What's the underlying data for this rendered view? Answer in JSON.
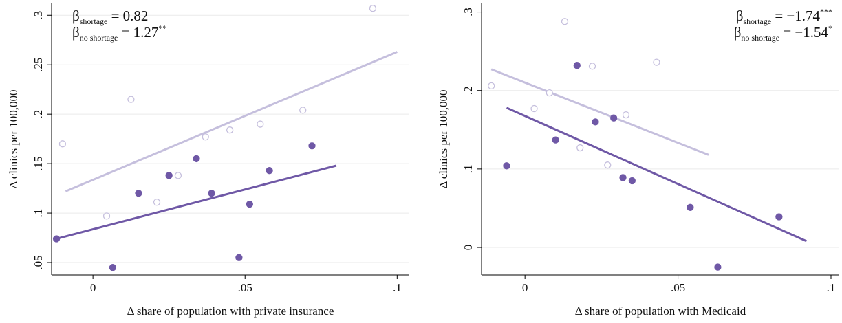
{
  "chart_data": [
    {
      "type": "scatter",
      "xlabel": "Δ share of population with private insurance",
      "ylabel": "Δ clinics per 100,000",
      "annotations": [
        {
          "symbol": "β",
          "sub": "shortage",
          "text": " = 0.82"
        },
        {
          "symbol": "β",
          "sub": "no shortage",
          "text": " = 1.27",
          "sup": "**"
        }
      ],
      "annotation_corner": "top-left",
      "xlim": [
        -0.0136,
        0.104
      ],
      "ylim": [
        0.0375,
        0.312
      ],
      "xticks": [
        0,
        {
          "value": 0.05,
          "label": ".05"
        },
        {
          "value": 0.1,
          "label": ".1"
        }
      ],
      "yticks": [
        {
          "value": 0.05,
          "label": ".05"
        },
        {
          "value": 0.1,
          "label": ".1"
        },
        {
          "value": 0.15,
          "label": ".15"
        },
        {
          "value": 0.2,
          "label": ".2"
        },
        {
          "value": 0.25,
          "label": ".25"
        },
        {
          "value": 0.3,
          "label": ".3"
        }
      ],
      "grid": true,
      "series": [
        {
          "color": "#6f58a6",
          "filled": true,
          "x": [
            -0.012,
            0.0065,
            0.015,
            0.025,
            0.034,
            0.039,
            0.048,
            0.0515,
            0.058,
            0.072
          ],
          "values": [
            0.074,
            0.045,
            0.12,
            0.138,
            0.155,
            0.12,
            0.055,
            0.109,
            0.143,
            0.168
          ],
          "fit": {
            "x": [
              -0.012,
              0.08
            ],
            "values": [
              0.074,
              0.148
            ]
          }
        },
        {
          "color": "#c5bfdd",
          "filled": false,
          "x": [
            -0.01,
            0.0045,
            0.0125,
            0.021,
            0.028,
            0.037,
            0.045,
            0.055,
            0.069,
            0.092
          ],
          "values": [
            0.17,
            0.097,
            0.215,
            0.111,
            0.138,
            0.177,
            0.184,
            0.19,
            0.204,
            0.307
          ],
          "fit": {
            "x": [
              -0.009,
              0.1
            ],
            "values": [
              0.122,
              0.263
            ]
          }
        }
      ]
    },
    {
      "type": "scatter",
      "xlabel": "Δ share of population with Medicaid",
      "ylabel": "Δ clinics per 100,000",
      "annotations": [
        {
          "symbol": "β",
          "sub": "shortage",
          "text": " = −1.74",
          "sup": "***"
        },
        {
          "symbol": "β",
          "sub": "no shortage",
          "text": " = −1.54",
          "sup": "*"
        }
      ],
      "annotation_corner": "top-right",
      "xlim": [
        -0.0142,
        0.1027
      ],
      "ylim": [
        -0.035,
        0.311
      ],
      "xticks": [
        0,
        {
          "value": 0.05,
          "label": ".05"
        },
        {
          "value": 0.1,
          "label": ".1"
        }
      ],
      "yticks": [
        0,
        {
          "value": 0.1,
          "label": ".1"
        },
        {
          "value": 0.2,
          "label": ".2"
        },
        {
          "value": 0.3,
          "label": ".3"
        }
      ],
      "grid": true,
      "series": [
        {
          "color": "#6f58a6",
          "filled": true,
          "x": [
            -0.006,
            0.01,
            0.017,
            0.023,
            0.029,
            0.032,
            0.035,
            0.054,
            0.063,
            0.083
          ],
          "values": [
            0.104,
            0.137,
            0.232,
            0.16,
            0.165,
            0.089,
            0.085,
            0.051,
            -0.025,
            0.039
          ],
          "fit": {
            "x": [
              -0.006,
              0.092
            ],
            "values": [
              0.178,
              0.008
            ]
          }
        },
        {
          "color": "#c5bfdd",
          "filled": false,
          "x": [
            -0.011,
            0.003,
            0.008,
            0.013,
            0.018,
            0.022,
            0.027,
            0.033,
            0.043
          ],
          "values": [
            0.206,
            0.177,
            0.197,
            0.288,
            0.127,
            0.231,
            0.105,
            0.169,
            0.236
          ],
          "fit": {
            "x": [
              -0.011,
              0.06
            ],
            "values": [
              0.227,
              0.118
            ]
          }
        }
      ]
    }
  ]
}
